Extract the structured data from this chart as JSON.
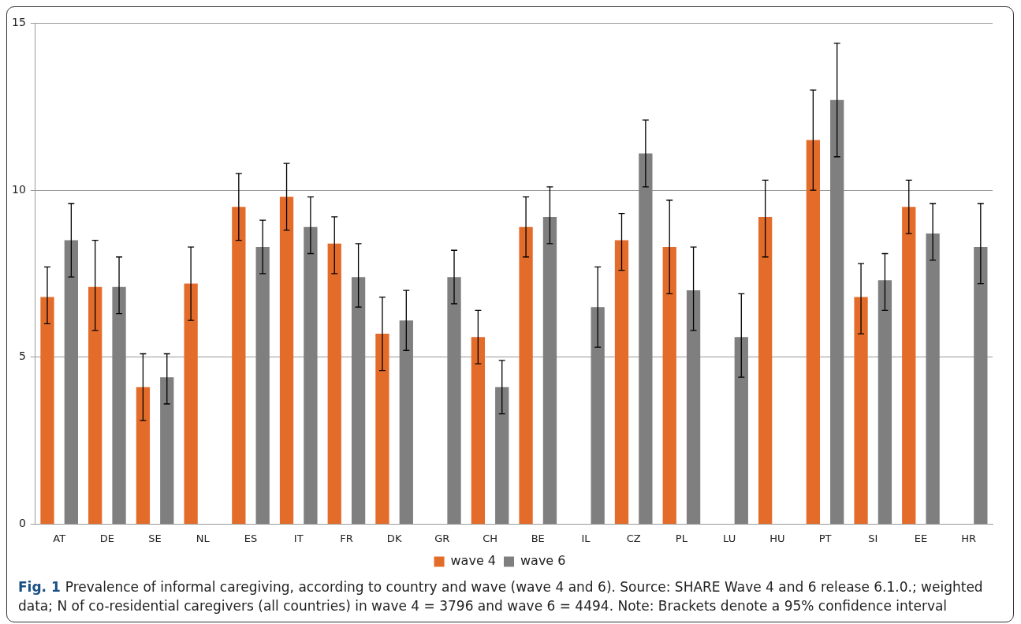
{
  "chart_data": {
    "type": "bar",
    "categories": [
      "AT",
      "DE",
      "SE",
      "NL",
      "ES",
      "IT",
      "FR",
      "DK",
      "GR",
      "CH",
      "BE",
      "IL",
      "CZ",
      "PL",
      "LU",
      "HU",
      "PT",
      "SI",
      "EE",
      "HR"
    ],
    "series": [
      {
        "name": "wave 4",
        "color": "#e46c2a",
        "values": [
          6.8,
          7.1,
          4.1,
          7.2,
          9.5,
          9.8,
          8.4,
          5.7,
          null,
          5.6,
          8.9,
          null,
          8.5,
          8.3,
          null,
          9.2,
          11.5,
          6.8,
          9.5,
          null
        ],
        "errors": [
          [
            6.0,
            7.7
          ],
          [
            5.8,
            8.5
          ],
          [
            3.1,
            5.1
          ],
          [
            6.1,
            8.3
          ],
          [
            8.5,
            10.5
          ],
          [
            8.8,
            10.8
          ],
          [
            7.5,
            9.2
          ],
          [
            4.6,
            6.8
          ],
          null,
          [
            4.8,
            6.4
          ],
          [
            8.0,
            9.8
          ],
          null,
          [
            7.6,
            9.3
          ],
          [
            6.9,
            9.7
          ],
          null,
          [
            8.0,
            10.3
          ],
          [
            10.0,
            13.0
          ],
          [
            5.7,
            7.8
          ],
          [
            8.7,
            10.3
          ],
          null
        ]
      },
      {
        "name": "wave 6",
        "color": "#7f7f7f",
        "values": [
          8.5,
          7.1,
          4.4,
          null,
          8.3,
          8.9,
          7.4,
          6.1,
          7.4,
          4.1,
          9.2,
          6.5,
          11.1,
          7.0,
          5.6,
          null,
          12.7,
          7.3,
          8.7,
          8.3
        ],
        "errors": [
          [
            7.4,
            9.6
          ],
          [
            6.3,
            8.0
          ],
          [
            3.6,
            5.1
          ],
          null,
          [
            7.5,
            9.1
          ],
          [
            8.1,
            9.8
          ],
          [
            6.5,
            8.4
          ],
          [
            5.2,
            7.0
          ],
          [
            6.6,
            8.2
          ],
          [
            3.3,
            4.9
          ],
          [
            8.4,
            10.1
          ],
          [
            5.3,
            7.7
          ],
          [
            10.1,
            12.1
          ],
          [
            5.8,
            8.3
          ],
          [
            4.4,
            6.9
          ],
          null,
          [
            11.0,
            14.4
          ],
          [
            6.4,
            8.1
          ],
          [
            7.9,
            9.6
          ],
          [
            7.2,
            9.6
          ]
        ]
      }
    ],
    "ylim": [
      0,
      15
    ],
    "yticks": [
      0,
      5,
      10,
      15
    ],
    "grid": "y",
    "legend": "bottom",
    "annotations": [
      "Fig. 1",
      "Prevalence of informal caregiving, according to country and wave (wave 4 and 6). Source: SHARE Wave 4 and 6 release 6.1.0.; weighted data; N of co-residential caregivers (all countries) in wave 4 = 3796 and wave 6 = 4494. Note: Brackets denote a 95% confidence interval"
    ]
  }
}
